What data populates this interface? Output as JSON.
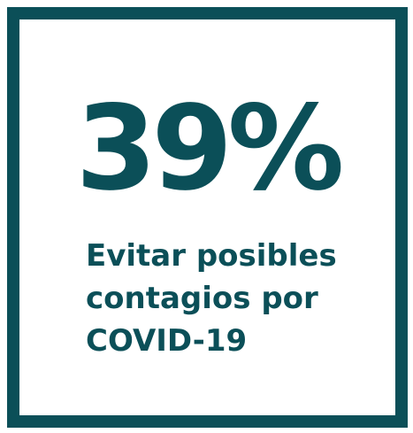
{
  "stat": {
    "value": "39%",
    "label_lines": [
      "Evitar posibles",
      "contagios por",
      "COVID-19"
    ]
  }
}
